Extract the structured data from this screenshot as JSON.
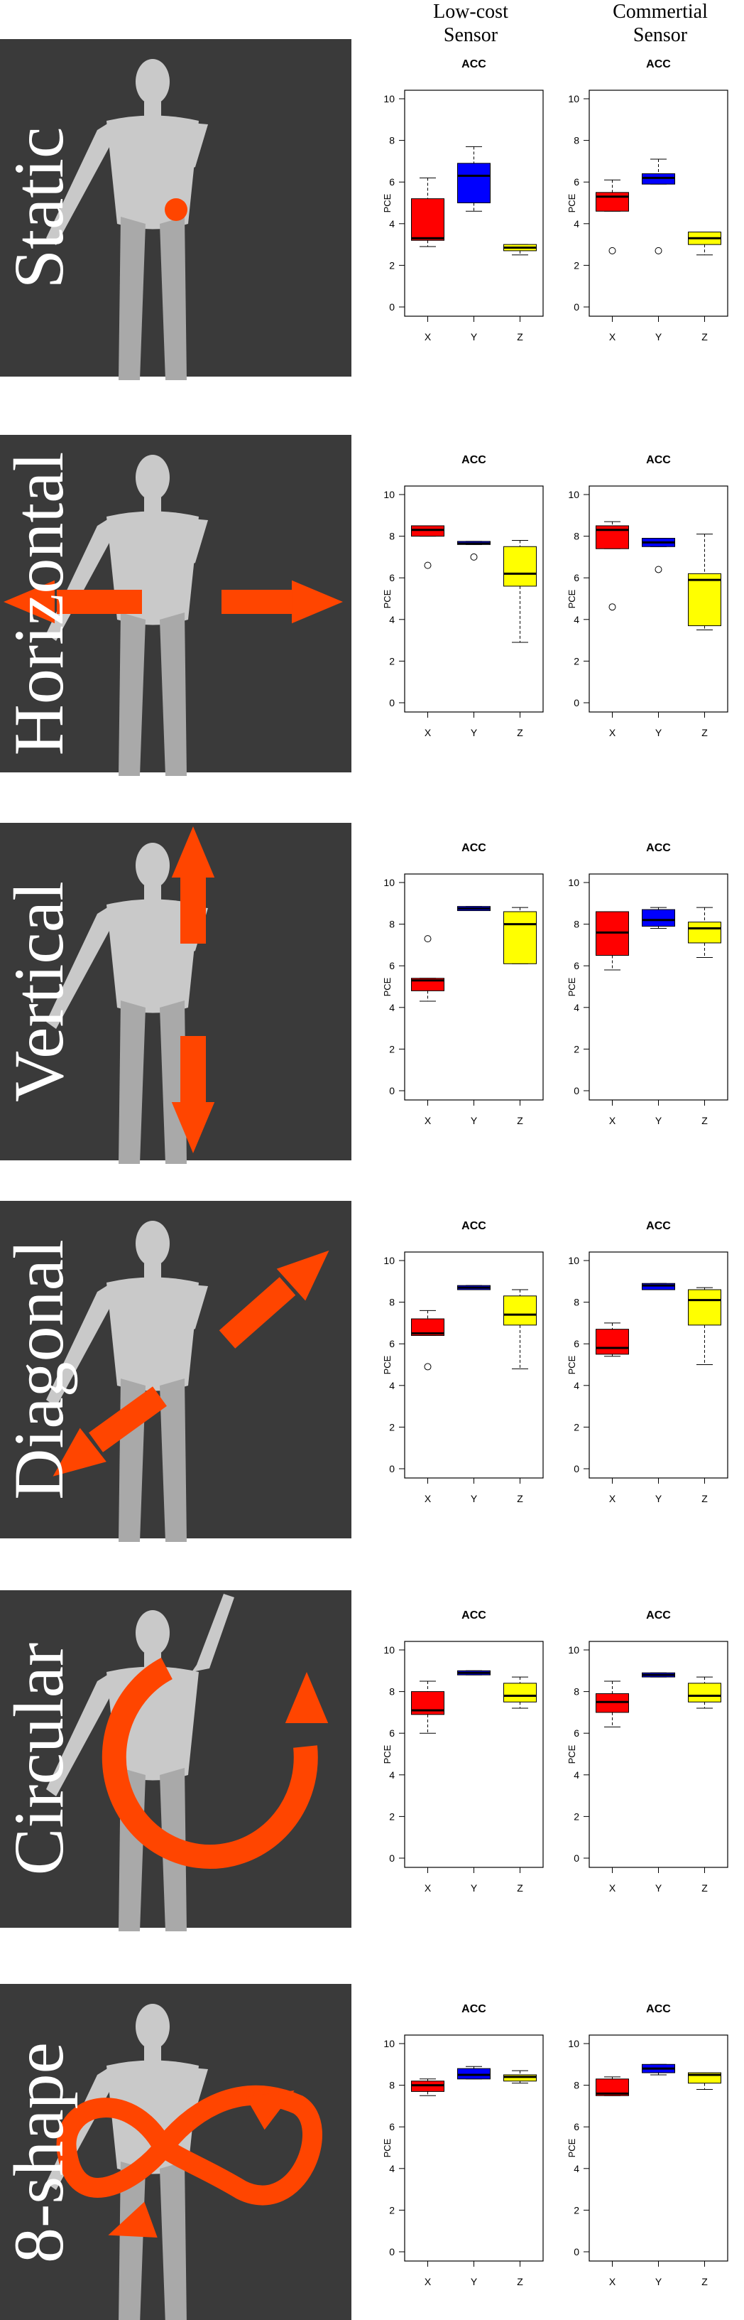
{
  "columns": {
    "low": [
      "Low-cost",
      "Sensor"
    ],
    "comm": [
      "Commertial",
      "Sensor"
    ]
  },
  "colors": {
    "panel_bg": "#3a3a3a",
    "arrow": "#ff4500",
    "X": "#ff0000",
    "Y": "#0000ff",
    "Z": "#ffff00"
  },
  "chart_data": [
    {
      "row": "Static",
      "icon": "static-dot-icon",
      "charts": [
        {
          "type": "boxplot",
          "title": "ACC",
          "ylabel": "PCE",
          "categories": [
            "X",
            "Y",
            "Z"
          ],
          "ylim": [
            0,
            10
          ],
          "yticks": [
            0,
            2,
            4,
            6,
            8,
            10
          ],
          "boxes": [
            {
              "name": "X",
              "whislo": 2.9,
              "q1": 3.2,
              "med": 3.3,
              "q3": 5.2,
              "whishi": 6.2,
              "outliers": []
            },
            {
              "name": "Y",
              "whislo": 4.6,
              "q1": 5.0,
              "med": 6.3,
              "q3": 6.9,
              "whishi": 7.7,
              "outliers": []
            },
            {
              "name": "Z",
              "whislo": 2.5,
              "q1": 2.7,
              "med": 2.85,
              "q3": 3.0,
              "whishi": 3.0,
              "outliers": []
            }
          ]
        },
        {
          "type": "boxplot",
          "title": "ACC",
          "ylabel": "PCE",
          "categories": [
            "X",
            "Y",
            "Z"
          ],
          "ylim": [
            0,
            10
          ],
          "yticks": [
            0,
            2,
            4,
            6,
            8,
            10
          ],
          "boxes": [
            {
              "name": "X",
              "whislo": 4.6,
              "q1": 4.6,
              "med": 5.3,
              "q3": 5.5,
              "whishi": 6.1,
              "outliers": [
                2.7
              ]
            },
            {
              "name": "Y",
              "whislo": 5.9,
              "q1": 5.9,
              "med": 6.2,
              "q3": 6.4,
              "whishi": 7.1,
              "outliers": [
                2.7
              ]
            },
            {
              "name": "Z",
              "whislo": 2.5,
              "q1": 3.0,
              "med": 3.3,
              "q3": 3.6,
              "whishi": 3.6,
              "outliers": []
            }
          ]
        }
      ]
    },
    {
      "row": "Horizontal",
      "icon": "horizontal-arrows-icon",
      "charts": [
        {
          "type": "boxplot",
          "title": "ACC",
          "ylabel": "PCE",
          "categories": [
            "X",
            "Y",
            "Z"
          ],
          "ylim": [
            0,
            10
          ],
          "yticks": [
            0,
            2,
            4,
            6,
            8,
            10
          ],
          "boxes": [
            {
              "name": "X",
              "whislo": 8.0,
              "q1": 8.0,
              "med": 8.3,
              "q3": 8.5,
              "whishi": 8.5,
              "outliers": [
                6.6
              ]
            },
            {
              "name": "Y",
              "whislo": 7.6,
              "q1": 7.6,
              "med": 7.65,
              "q3": 7.75,
              "whishi": 7.75,
              "outliers": [
                7.0
              ]
            },
            {
              "name": "Z",
              "whislo": 2.9,
              "q1": 5.6,
              "med": 6.2,
              "q3": 7.5,
              "whishi": 7.8,
              "outliers": []
            }
          ]
        },
        {
          "type": "boxplot",
          "title": "ACC",
          "ylabel": "PCE",
          "categories": [
            "X",
            "Y",
            "Z"
          ],
          "ylim": [
            0,
            10
          ],
          "yticks": [
            0,
            2,
            4,
            6,
            8,
            10
          ],
          "boxes": [
            {
              "name": "X",
              "whislo": 7.4,
              "q1": 7.4,
              "med": 8.3,
              "q3": 8.5,
              "whishi": 8.7,
              "outliers": [
                4.6
              ]
            },
            {
              "name": "Y",
              "whislo": 7.5,
              "q1": 7.5,
              "med": 7.7,
              "q3": 7.9,
              "whishi": 7.9,
              "outliers": [
                6.4
              ]
            },
            {
              "name": "Z",
              "whislo": 3.5,
              "q1": 3.7,
              "med": 5.9,
              "q3": 6.2,
              "whishi": 8.1,
              "outliers": []
            }
          ]
        }
      ]
    },
    {
      "row": "Vertical",
      "icon": "vertical-arrows-icon",
      "charts": [
        {
          "type": "boxplot",
          "title": "ACC",
          "ylabel": "PCE",
          "categories": [
            "X",
            "Y",
            "Z"
          ],
          "ylim": [
            0,
            10
          ],
          "yticks": [
            0,
            2,
            4,
            6,
            8,
            10
          ],
          "boxes": [
            {
              "name": "X",
              "whislo": 4.3,
              "q1": 4.8,
              "med": 5.3,
              "q3": 5.4,
              "whishi": 5.4,
              "outliers": [
                7.3
              ]
            },
            {
              "name": "Y",
              "whislo": 8.65,
              "q1": 8.65,
              "med": 8.75,
              "q3": 8.85,
              "whishi": 8.85,
              "outliers": []
            },
            {
              "name": "Z",
              "whislo": 6.1,
              "q1": 6.1,
              "med": 8.0,
              "q3": 8.6,
              "whishi": 8.8,
              "outliers": []
            }
          ]
        },
        {
          "type": "boxplot",
          "title": "ACC",
          "ylabel": "PCE",
          "categories": [
            "X",
            "Y",
            "Z"
          ],
          "ylim": [
            0,
            10
          ],
          "yticks": [
            0,
            2,
            4,
            6,
            8,
            10
          ],
          "boxes": [
            {
              "name": "X",
              "whislo": 5.8,
              "q1": 6.5,
              "med": 7.6,
              "q3": 8.6,
              "whishi": 8.6,
              "outliers": []
            },
            {
              "name": "Y",
              "whislo": 7.8,
              "q1": 7.9,
              "med": 8.2,
              "q3": 8.7,
              "whishi": 8.8,
              "outliers": []
            },
            {
              "name": "Z",
              "whislo": 6.4,
              "q1": 7.1,
              "med": 7.8,
              "q3": 8.1,
              "whishi": 8.8,
              "outliers": []
            }
          ]
        }
      ]
    },
    {
      "row": "Diagonal",
      "icon": "diagonal-arrows-icon",
      "charts": [
        {
          "type": "boxplot",
          "title": "ACC",
          "ylabel": "PCE",
          "categories": [
            "X",
            "Y",
            "Z"
          ],
          "ylim": [
            0,
            10
          ],
          "yticks": [
            0,
            2,
            4,
            6,
            8,
            10
          ],
          "boxes": [
            {
              "name": "X",
              "whislo": 6.4,
              "q1": 6.4,
              "med": 6.5,
              "q3": 7.2,
              "whishi": 7.6,
              "outliers": [
                4.9
              ]
            },
            {
              "name": "Y",
              "whislo": 8.6,
              "q1": 8.6,
              "med": 8.7,
              "q3": 8.8,
              "whishi": 8.8,
              "outliers": []
            },
            {
              "name": "Z",
              "whislo": 4.8,
              "q1": 6.9,
              "med": 7.4,
              "q3": 8.3,
              "whishi": 8.6,
              "outliers": []
            }
          ]
        },
        {
          "type": "boxplot",
          "title": "ACC",
          "ylabel": "PCE",
          "categories": [
            "X",
            "Y",
            "Z"
          ],
          "ylim": [
            0,
            10
          ],
          "yticks": [
            0,
            2,
            4,
            6,
            8,
            10
          ],
          "boxes": [
            {
              "name": "X",
              "whislo": 5.4,
              "q1": 5.5,
              "med": 5.8,
              "q3": 6.7,
              "whishi": 7.0,
              "outliers": []
            },
            {
              "name": "Y",
              "whislo": 8.6,
              "q1": 8.6,
              "med": 8.8,
              "q3": 8.9,
              "whishi": 8.9,
              "outliers": []
            },
            {
              "name": "Z",
              "whislo": 5.0,
              "q1": 6.9,
              "med": 8.1,
              "q3": 8.6,
              "whishi": 8.7,
              "outliers": []
            }
          ]
        }
      ]
    },
    {
      "row": "Circular",
      "icon": "circular-arrow-icon",
      "charts": [
        {
          "type": "boxplot",
          "title": "ACC",
          "ylabel": "PCE",
          "categories": [
            "X",
            "Y",
            "Z"
          ],
          "ylim": [
            0,
            10
          ],
          "yticks": [
            0,
            2,
            4,
            6,
            8,
            10
          ],
          "boxes": [
            {
              "name": "X",
              "whislo": 6.0,
              "q1": 6.9,
              "med": 7.1,
              "q3": 8.0,
              "whishi": 8.5,
              "outliers": []
            },
            {
              "name": "Y",
              "whislo": 8.8,
              "q1": 8.8,
              "med": 8.9,
              "q3": 9.0,
              "whishi": 9.0,
              "outliers": []
            },
            {
              "name": "Z",
              "whislo": 7.2,
              "q1": 7.5,
              "med": 7.8,
              "q3": 8.4,
              "whishi": 8.7,
              "outliers": []
            }
          ]
        },
        {
          "type": "boxplot",
          "title": "ACC",
          "ylabel": "PCE",
          "categories": [
            "X",
            "Y",
            "Z"
          ],
          "ylim": [
            0,
            10
          ],
          "yticks": [
            0,
            2,
            4,
            6,
            8,
            10
          ],
          "boxes": [
            {
              "name": "X",
              "whislo": 6.3,
              "q1": 7.0,
              "med": 7.5,
              "q3": 7.9,
              "whishi": 8.5,
              "outliers": []
            },
            {
              "name": "Y",
              "whislo": 8.7,
              "q1": 8.7,
              "med": 8.8,
              "q3": 8.9,
              "whishi": 8.9,
              "outliers": []
            },
            {
              "name": "Z",
              "whislo": 7.2,
              "q1": 7.5,
              "med": 7.8,
              "q3": 8.4,
              "whishi": 8.7,
              "outliers": []
            }
          ]
        }
      ]
    },
    {
      "row": "8-shape",
      "icon": "figure-eight-arrow-icon",
      "charts": [
        {
          "type": "boxplot",
          "title": "ACC",
          "ylabel": "PCE",
          "categories": [
            "X",
            "Y",
            "Z"
          ],
          "ylim": [
            0,
            10
          ],
          "yticks": [
            0,
            2,
            4,
            6,
            8,
            10
          ],
          "boxes": [
            {
              "name": "X",
              "whislo": 7.5,
              "q1": 7.7,
              "med": 8.0,
              "q3": 8.2,
              "whishi": 8.3,
              "outliers": []
            },
            {
              "name": "Y",
              "whislo": 8.3,
              "q1": 8.3,
              "med": 8.5,
              "q3": 8.8,
              "whishi": 8.9,
              "outliers": []
            },
            {
              "name": "Z",
              "whislo": 8.1,
              "q1": 8.2,
              "med": 8.4,
              "q3": 8.5,
              "whishi": 8.7,
              "outliers": []
            }
          ]
        },
        {
          "type": "boxplot",
          "title": "ACC",
          "ylabel": "PCE",
          "categories": [
            "X",
            "Y",
            "Z"
          ],
          "ylim": [
            0,
            10
          ],
          "yticks": [
            0,
            2,
            4,
            6,
            8,
            10
          ],
          "boxes": [
            {
              "name": "X",
              "whislo": 7.5,
              "q1": 7.5,
              "med": 7.6,
              "q3": 8.3,
              "whishi": 8.4,
              "outliers": []
            },
            {
              "name": "Y",
              "whislo": 8.5,
              "q1": 8.6,
              "med": 8.8,
              "q3": 9.0,
              "whishi": 9.0,
              "outliers": []
            },
            {
              "name": "Z",
              "whislo": 7.8,
              "q1": 8.1,
              "med": 8.5,
              "q3": 8.6,
              "whishi": 8.6,
              "outliers": []
            }
          ]
        }
      ]
    }
  ]
}
